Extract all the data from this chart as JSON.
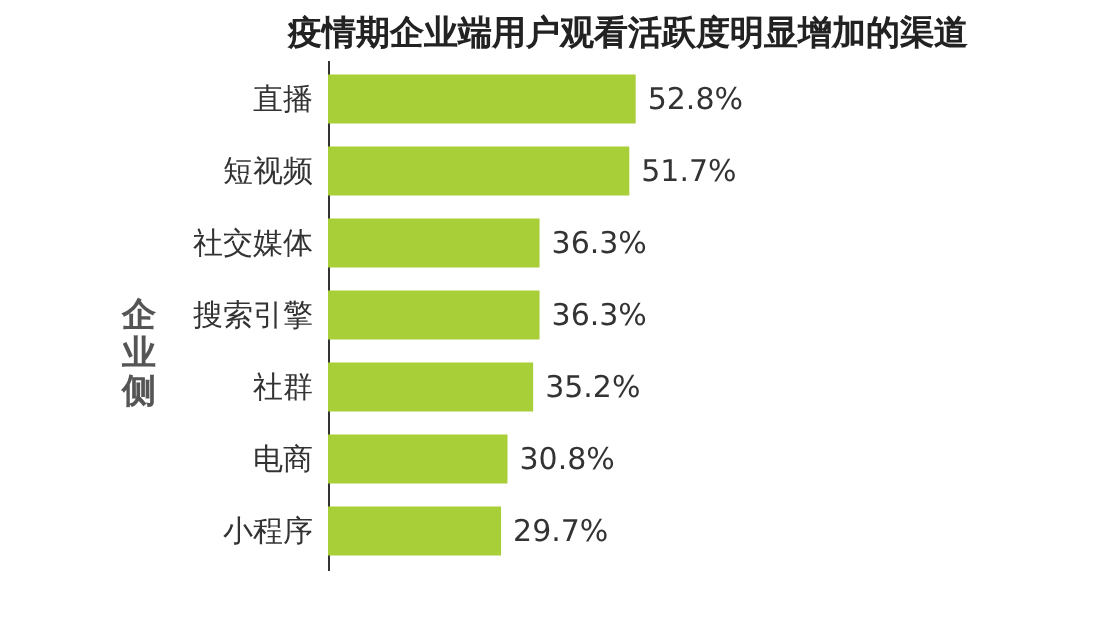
{
  "chart_data": {
    "type": "bar",
    "orientation": "horizontal",
    "title": "疫情期企业端用户观看活跃度明显增加的渠道",
    "ylabel": "企业侧",
    "categories": [
      "直播",
      "短视频",
      "社交媒体",
      "搜索引擎",
      "社群",
      "电商",
      "小程序"
    ],
    "values": [
      52.8,
      51.7,
      36.3,
      36.3,
      35.2,
      30.8,
      29.7
    ],
    "value_labels": [
      "52.8%",
      "51.7%",
      "36.3%",
      "36.3%",
      "35.2%",
      "30.8%",
      "29.7%"
    ],
    "color": "#a8cf38",
    "grid": false
  }
}
